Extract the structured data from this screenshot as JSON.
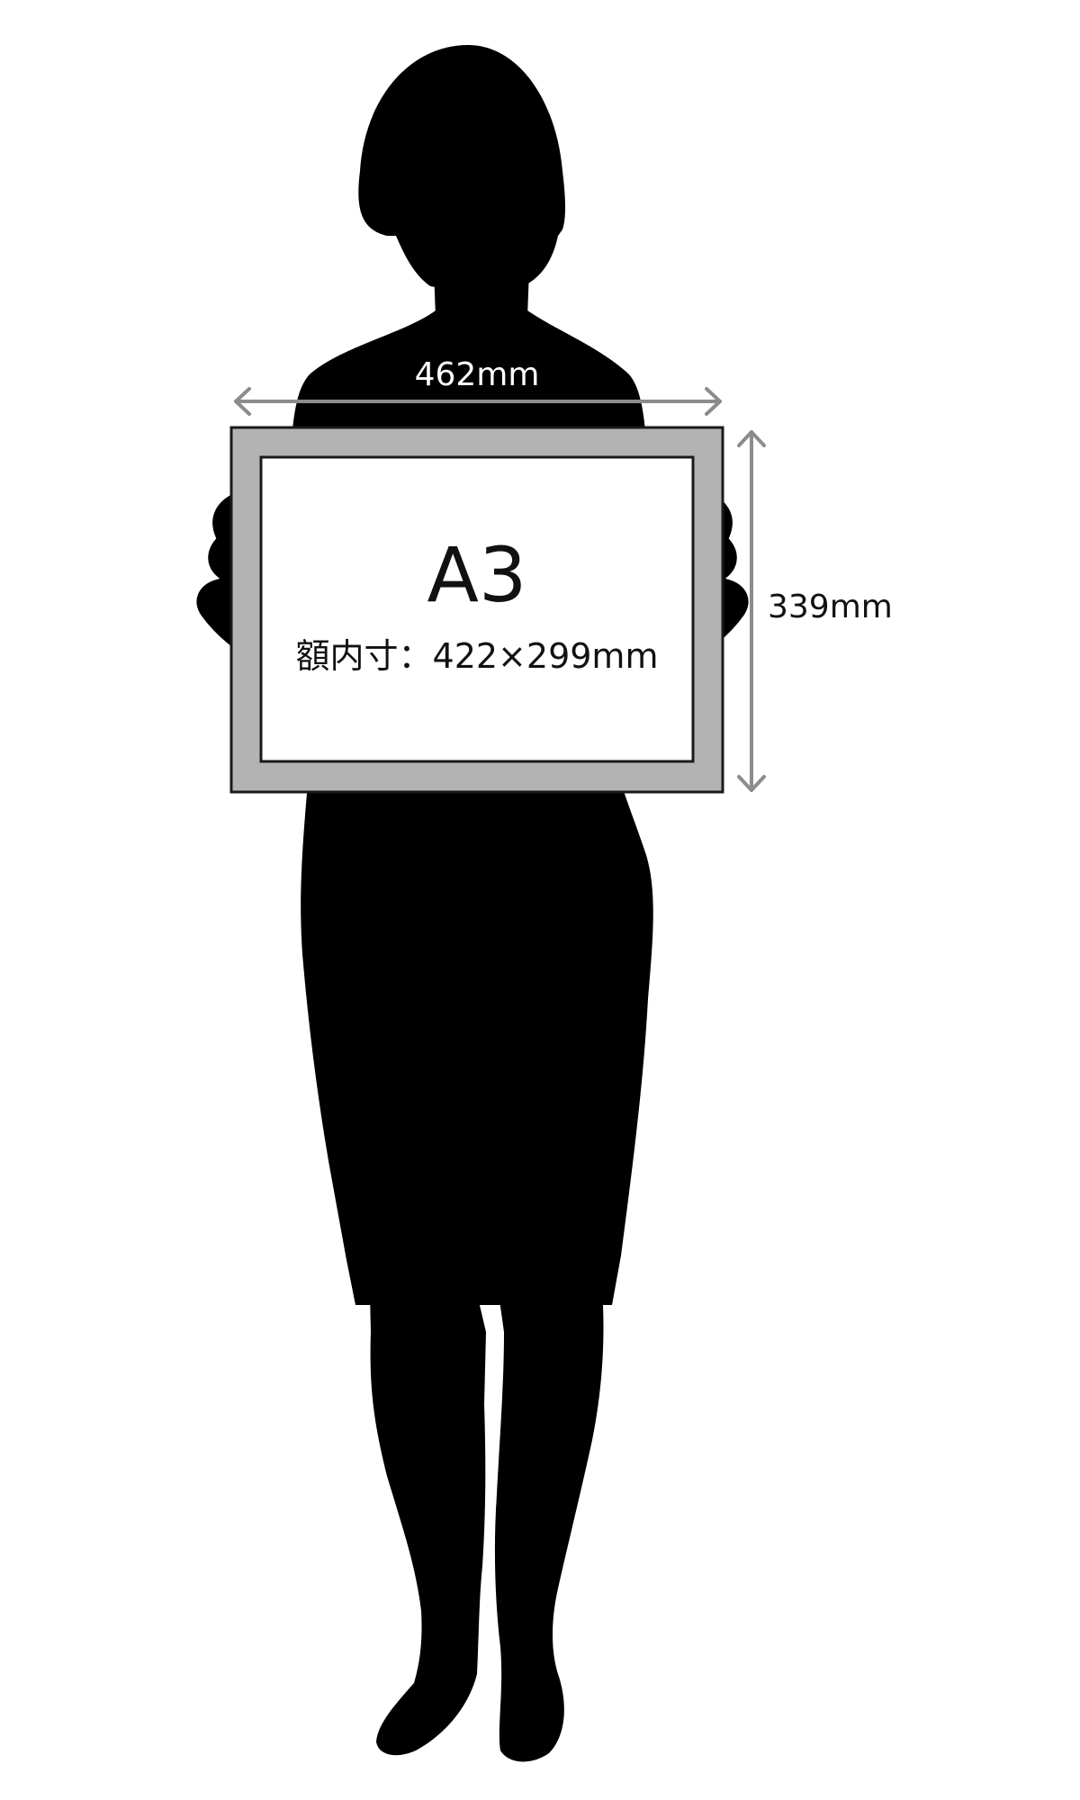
{
  "frame": {
    "size_name": "A3",
    "inner_label": "額内寸：422×299mm"
  },
  "dimensions": {
    "width_label": "462mm",
    "height_label": "339mm"
  },
  "colors": {
    "silhouette": "#000000",
    "frame_border": "#b3b3b3",
    "frame_outline": "#1a1a1a",
    "inner_fill": "#ffffff",
    "arrow": "#8c8c8c",
    "background": "#ffffff"
  }
}
